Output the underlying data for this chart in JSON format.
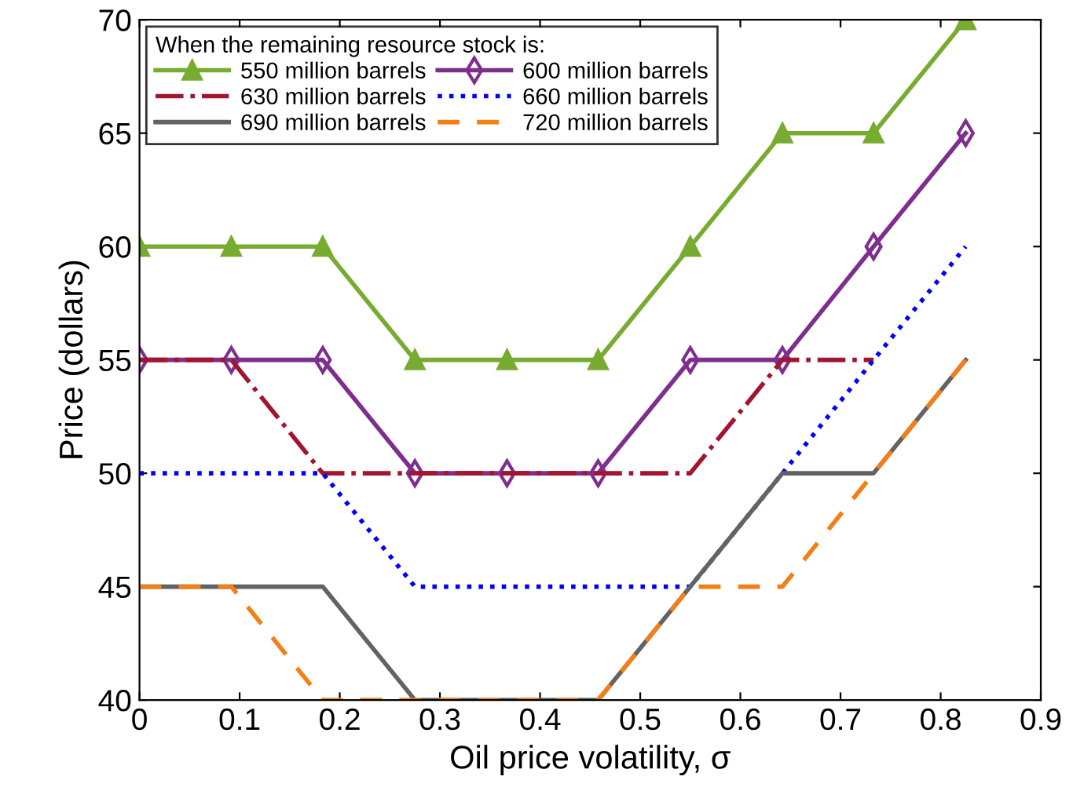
{
  "chart_data": {
    "type": "line",
    "xlabel": "Oil price volatility, σ",
    "ylabel": "Price (dollars)",
    "legend_title": "When the remaining resource stock is:",
    "x": [
      0,
      0.0917,
      0.183,
      0.275,
      0.367,
      0.458,
      0.55,
      0.642,
      0.733,
      0.825
    ],
    "series": [
      {
        "name": "550 million barrels",
        "color": "#77ac30",
        "marker": "triangle",
        "line_style": "solid",
        "values": [
          60,
          60,
          60,
          55,
          55,
          55,
          60,
          65,
          65,
          70
        ]
      },
      {
        "name": "600 million barrels",
        "color": "#7e2f8e",
        "marker": "diamond",
        "line_style": "solid",
        "values": [
          55,
          55,
          55,
          50,
          50,
          50,
          55,
          55,
          60,
          65
        ]
      },
      {
        "name": "630 million barrels",
        "color": "#a2142f",
        "marker": "none",
        "line_style": "dashdot",
        "values": [
          55,
          55,
          50,
          50,
          50,
          50,
          50,
          55,
          55,
          null
        ]
      },
      {
        "name": "660 million barrels",
        "color": "#0000ff",
        "marker": "none",
        "line_style": "dotted",
        "values": [
          50,
          50,
          50,
          45,
          45,
          45,
          45,
          50,
          55,
          60
        ]
      },
      {
        "name": "690 million barrels",
        "color": "#636363",
        "marker": "none",
        "line_style": "solid",
        "values": [
          45,
          45,
          45,
          40,
          40,
          40,
          45,
          50,
          50,
          55
        ]
      },
      {
        "name": "720 million barrels",
        "color": "#f57f17",
        "marker": "none",
        "line_style": "dashed",
        "values": [
          45,
          45,
          40,
          40,
          40,
          40,
          45,
          45,
          50,
          55
        ]
      }
    ],
    "xlim": [
      0,
      0.9
    ],
    "xticks": [
      0,
      0.1,
      0.2,
      0.3,
      0.4,
      0.5,
      0.6,
      0.7,
      0.8,
      0.9
    ],
    "ylim": [
      40,
      70
    ],
    "yticks": [
      40,
      45,
      50,
      55,
      60,
      65,
      70
    ],
    "grid": false,
    "legend": "top left"
  }
}
